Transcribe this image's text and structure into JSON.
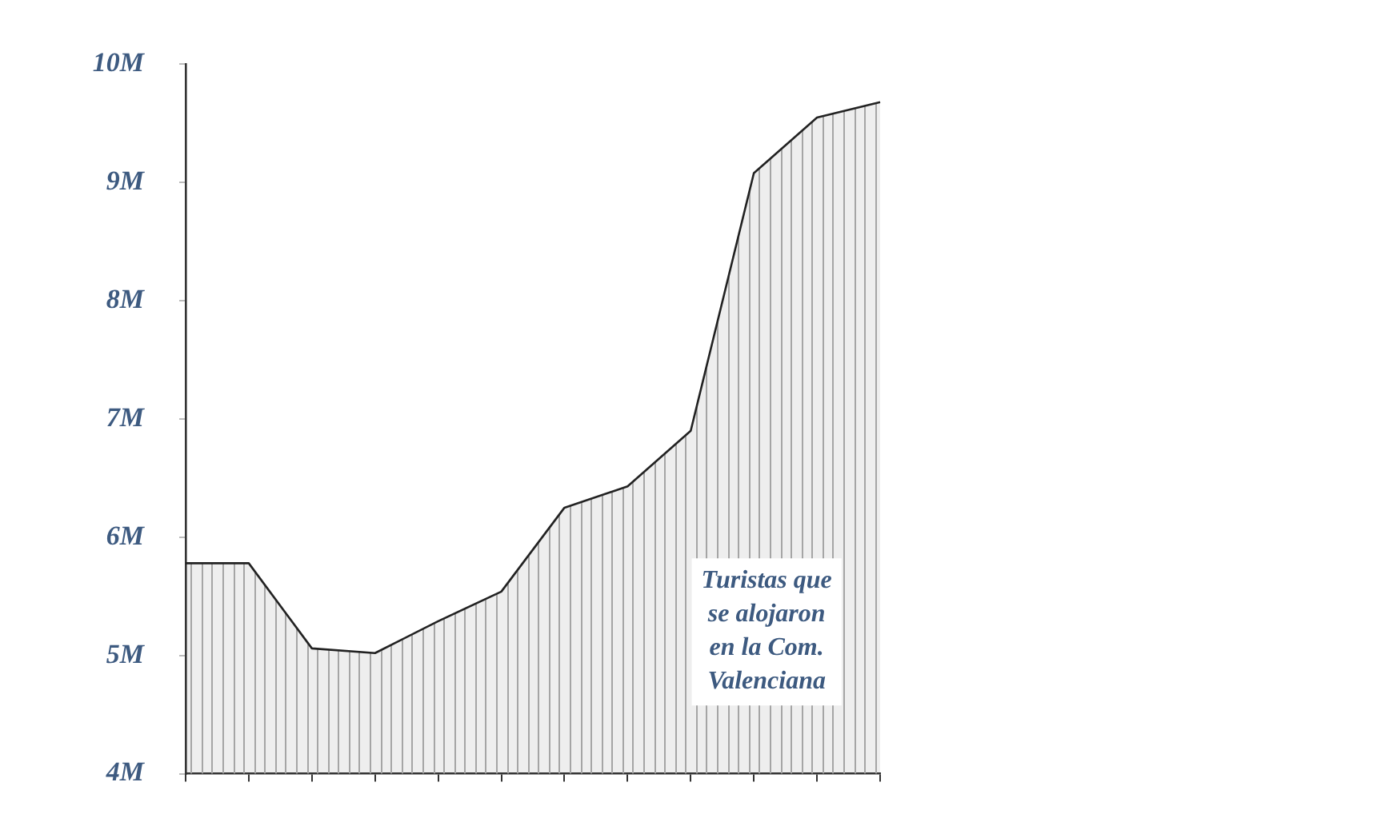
{
  "chart_data": {
    "type": "area",
    "categories": [
      null,
      null,
      null,
      null,
      null,
      null,
      null,
      null,
      null,
      null,
      null,
      null
    ],
    "series": [
      {
        "name": "Turistas que se alojaron en la Com. Valenciana",
        "color": "#222222",
        "values": [
          5.78,
          5.78,
          5.06,
          5.02,
          5.29,
          5.54,
          6.25,
          6.43,
          6.9,
          9.08,
          9.55,
          9.68
        ]
      }
    ],
    "ylim": [
      4,
      10
    ],
    "yticks": [
      {
        "value": 4,
        "label": "4M"
      },
      {
        "value": 5,
        "label": "5M"
      },
      {
        "value": 6,
        "label": "6M"
      },
      {
        "value": 7,
        "label": "7M"
      },
      {
        "value": 8,
        "label": "8M"
      },
      {
        "value": 9,
        "label": "9M"
      },
      {
        "value": 10,
        "label": "10M"
      }
    ],
    "tick_labels": "y",
    "grid": false,
    "legend": false,
    "marker": "none"
  }
}
